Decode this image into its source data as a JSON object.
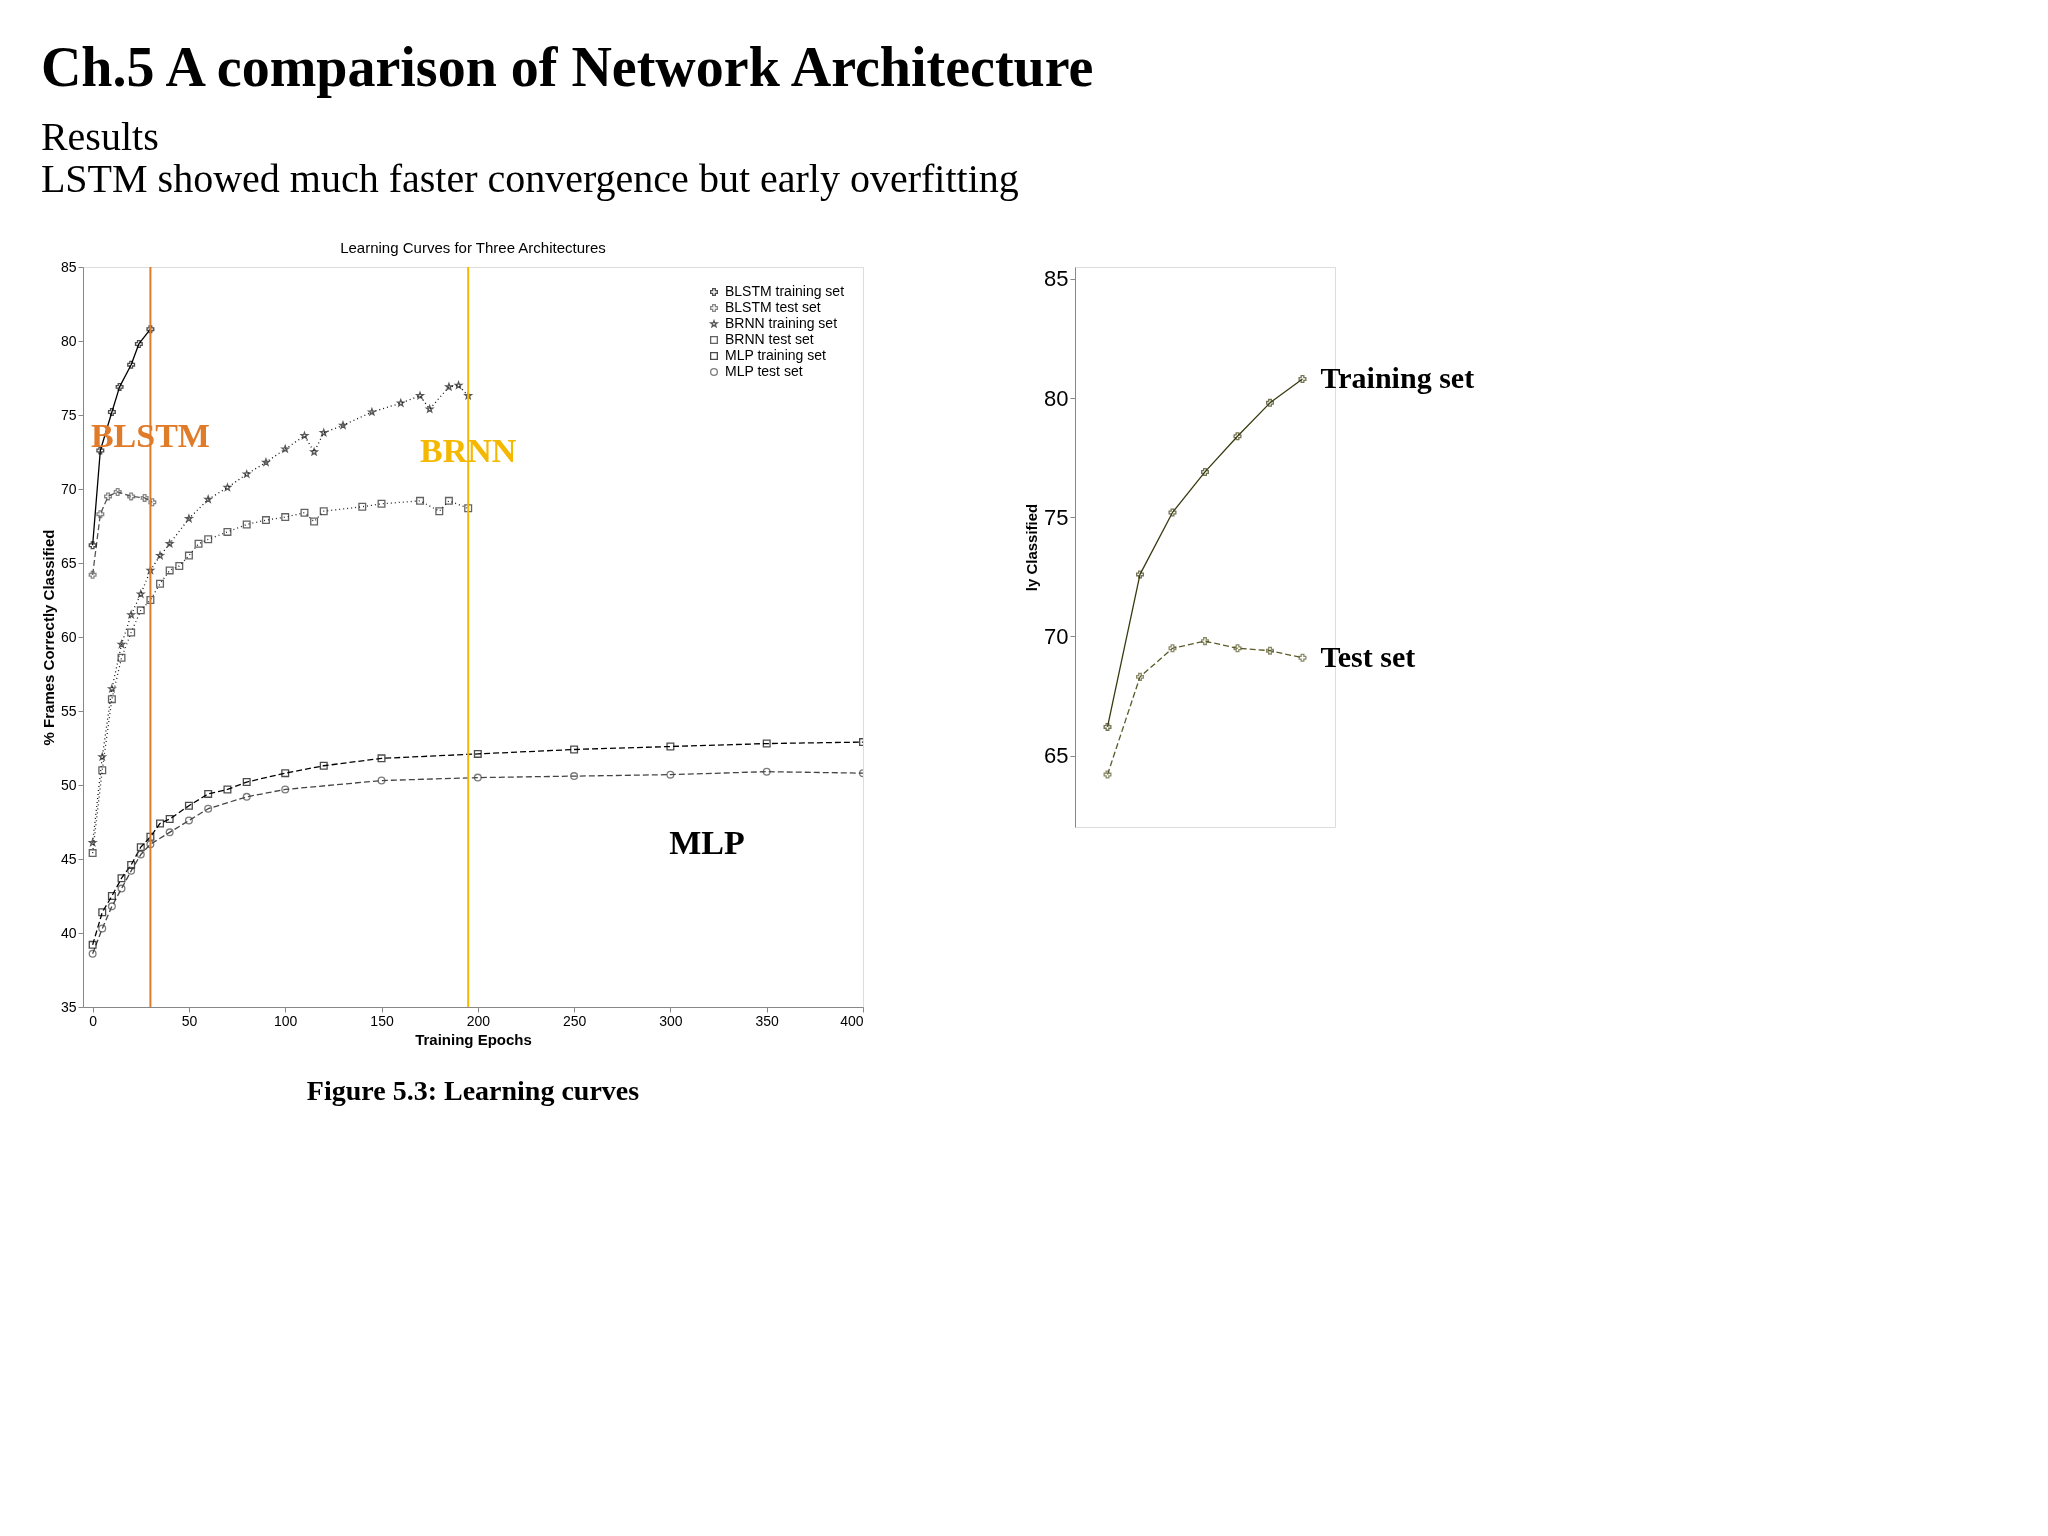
{
  "chart_data": [
    {
      "type": "line",
      "title": "Learning Curves for Three Architectures",
      "xlabel": "Training Epochs",
      "ylabel": "% Frames Correctly Classified",
      "xlim": [
        -5,
        400
      ],
      "ylim": [
        35,
        85
      ],
      "xticks": [
        0,
        50,
        100,
        150,
        200,
        250,
        300,
        350,
        400
      ],
      "yticks": [
        35,
        40,
        45,
        50,
        55,
        60,
        65,
        70,
        75,
        80,
        85
      ],
      "grid": false,
      "legend": "top right",
      "series": [
        {
          "name": "BLSTM training set",
          "color": "#000000",
          "line_style": "solid",
          "marker": "cross",
          "x": [
            0,
            4,
            10,
            14,
            20,
            24,
            30
          ],
          "values": [
            66.2,
            72.6,
            75.2,
            76.9,
            78.4,
            79.8,
            80.8
          ]
        },
        {
          "name": "BLSTM test set",
          "color": "#555555",
          "line_style": "dashed",
          "marker": "cross",
          "x": [
            0,
            4,
            8,
            13,
            20,
            27,
            31
          ],
          "values": [
            64.2,
            68.3,
            69.5,
            69.8,
            69.5,
            69.4,
            69.1
          ]
        },
        {
          "name": "BRNN training set",
          "color": "#111111",
          "line_style": "dotted",
          "marker": "star",
          "x": [
            0,
            5,
            10,
            15,
            20,
            25,
            30,
            35,
            40,
            50,
            60,
            70,
            80,
            90,
            100,
            110,
            115,
            120,
            130,
            145,
            160,
            170,
            175,
            185,
            190,
            195
          ],
          "values": [
            46.1,
            51.9,
            56.5,
            59.5,
            61.5,
            62.9,
            64.5,
            65.5,
            66.3,
            68.0,
            69.3,
            70.1,
            71.0,
            71.8,
            72.7,
            73.6,
            72.5,
            73.8,
            74.3,
            75.2,
            75.8,
            76.3,
            75.4,
            76.9,
            77.0,
            76.3
          ]
        },
        {
          "name": "BRNN test set",
          "color": "#222222",
          "line_style": "dotted",
          "marker": "square",
          "x": [
            0,
            5,
            10,
            15,
            20,
            25,
            30,
            35,
            40,
            45,
            50,
            55,
            60,
            70,
            80,
            90,
            100,
            110,
            115,
            120,
            140,
            150,
            170,
            180,
            185,
            195
          ],
          "values": [
            45.4,
            51.0,
            55.8,
            58.6,
            60.3,
            61.8,
            62.5,
            63.6,
            64.5,
            64.8,
            65.5,
            66.3,
            66.6,
            67.1,
            67.6,
            67.9,
            68.1,
            68.4,
            67.8,
            68.5,
            68.8,
            69.0,
            69.2,
            68.5,
            69.2,
            68.7
          ]
        },
        {
          "name": "MLP training set",
          "color": "#000000",
          "line_style": "dashed",
          "marker": "square",
          "x": [
            0,
            5,
            10,
            15,
            20,
            25,
            30,
            35,
            40,
            50,
            60,
            70,
            80,
            100,
            120,
            150,
            200,
            250,
            300,
            350,
            400
          ],
          "values": [
            39.2,
            41.4,
            42.5,
            43.7,
            44.6,
            45.8,
            46.5,
            47.4,
            47.7,
            48.6,
            49.4,
            49.7,
            50.2,
            50.8,
            51.3,
            51.8,
            52.1,
            52.4,
            52.6,
            52.8,
            52.9
          ]
        },
        {
          "name": "MLP test set",
          "color": "#444444",
          "line_style": "dashed",
          "marker": "circle",
          "x": [
            0,
            5,
            10,
            15,
            20,
            25,
            30,
            40,
            50,
            60,
            80,
            100,
            150,
            200,
            250,
            300,
            350,
            400
          ],
          "values": [
            38.6,
            40.3,
            41.8,
            43.0,
            44.2,
            45.3,
            46.0,
            46.8,
            47.6,
            48.4,
            49.2,
            49.7,
            50.3,
            50.5,
            50.6,
            50.7,
            50.9,
            50.8
          ]
        }
      ],
      "ref_lines": [
        {
          "axis": "x",
          "value": 30,
          "color": "#e07b2a"
        },
        {
          "axis": "x",
          "value": 195,
          "color": "#f5b800"
        }
      ],
      "annotations": [
        "Ch.5 A comparison of Network Architecture",
        "Results",
        "LSTM showed much faster convergence but early overfitting",
        {
          "text": "BLSTM",
          "x": 30,
          "y": 73.5
        },
        {
          "text": "BRNN",
          "x": 195,
          "y": 72.5
        },
        "MLP",
        "Figure 5.3: Learning curves"
      ]
    },
    {
      "type": "line",
      "ylabel": "ly Classified",
      "categories": [
        null,
        null,
        null,
        null,
        null,
        null,
        null
      ],
      "ylim": [
        62,
        85.5
      ],
      "yticks": [
        65,
        70,
        75,
        80,
        85
      ],
      "tick_labels": "y",
      "grid": false,
      "series": [
        {
          "color": "#3a3a10",
          "line_style": "solid",
          "marker": "cross",
          "values": [
            66.2,
            72.6,
            75.2,
            76.9,
            78.4,
            79.8,
            80.8
          ]
        },
        {
          "color": "#5a5a2a",
          "line_style": "dashed",
          "marker": "cross",
          "values": [
            64.2,
            68.3,
            69.5,
            69.8,
            69.5,
            69.4,
            69.1
          ]
        }
      ],
      "annotations": [
        "Training set",
        "Test set"
      ]
    }
  ]
}
